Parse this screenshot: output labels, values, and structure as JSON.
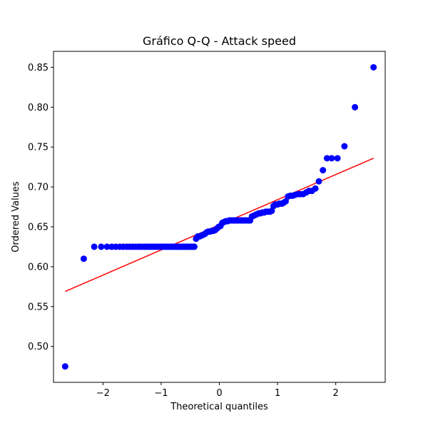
{
  "chart_data": {
    "type": "scatter",
    "title": "Gráfico Q-Q - Attack speed",
    "xlabel": "Theoretical quantiles",
    "ylabel": "Ordered Values",
    "xlim": [
      -2.85,
      2.85
    ],
    "ylim": [
      0.455,
      0.87
    ],
    "xticks": [
      -2,
      -1,
      0,
      1,
      2
    ],
    "xtick_labels": [
      "−2",
      "−1",
      "0",
      "1",
      "2"
    ],
    "yticks": [
      0.5,
      0.55,
      0.6,
      0.65,
      0.7,
      0.75,
      0.8,
      0.85
    ],
    "ytick_labels": [
      "0.50",
      "0.55",
      "0.60",
      "0.65",
      "0.70",
      "0.75",
      "0.80",
      "0.85"
    ],
    "grid": false,
    "marker_color": "#0000ff",
    "line_color": "#ff0000",
    "fit_line": {
      "x": [
        -2.65,
        2.65
      ],
      "y": [
        0.569,
        0.736
      ]
    },
    "points": [
      [
        -2.65,
        0.475
      ],
      [
        -2.33,
        0.61
      ],
      [
        -2.15,
        0.625
      ],
      [
        -2.03,
        0.625
      ],
      [
        -1.93,
        0.625
      ],
      [
        -1.85,
        0.625
      ],
      [
        -1.78,
        0.625
      ],
      [
        -1.71,
        0.625
      ],
      [
        -1.65,
        0.625
      ],
      [
        -1.59,
        0.625
      ],
      [
        -1.54,
        0.625
      ],
      [
        -1.49,
        0.625
      ],
      [
        -1.44,
        0.625
      ],
      [
        -1.39,
        0.625
      ],
      [
        -1.35,
        0.625
      ],
      [
        -1.3,
        0.625
      ],
      [
        -1.26,
        0.625
      ],
      [
        -1.22,
        0.625
      ],
      [
        -1.18,
        0.625
      ],
      [
        -1.14,
        0.625
      ],
      [
        -1.1,
        0.625
      ],
      [
        -1.06,
        0.625
      ],
      [
        -1.02,
        0.625
      ],
      [
        -0.98,
        0.625
      ],
      [
        -0.95,
        0.625
      ],
      [
        -0.91,
        0.625
      ],
      [
        -0.88,
        0.625
      ],
      [
        -0.84,
        0.625
      ],
      [
        -0.81,
        0.625
      ],
      [
        -0.77,
        0.625
      ],
      [
        -0.74,
        0.625
      ],
      [
        -0.71,
        0.625
      ],
      [
        -0.67,
        0.625
      ],
      [
        -0.64,
        0.625
      ],
      [
        -0.61,
        0.625
      ],
      [
        -0.58,
        0.625
      ],
      [
        -0.55,
        0.625
      ],
      [
        -0.52,
        0.625
      ],
      [
        -0.49,
        0.625
      ],
      [
        -0.46,
        0.625
      ],
      [
        -0.43,
        0.625
      ],
      [
        -0.4,
        0.635
      ],
      [
        -0.37,
        0.638
      ],
      [
        -0.34,
        0.638
      ],
      [
        -0.31,
        0.639
      ],
      [
        -0.28,
        0.64
      ],
      [
        -0.25,
        0.641
      ],
      [
        -0.22,
        0.643
      ],
      [
        -0.19,
        0.644
      ],
      [
        -0.16,
        0.644
      ],
      [
        -0.13,
        0.645
      ],
      [
        -0.1,
        0.645
      ],
      [
        -0.07,
        0.646
      ],
      [
        -0.04,
        0.648
      ],
      [
        -0.01,
        0.65
      ],
      [
        0.02,
        0.651
      ],
      [
        0.05,
        0.655
      ],
      [
        0.08,
        0.656
      ],
      [
        0.11,
        0.657
      ],
      [
        0.14,
        0.657
      ],
      [
        0.17,
        0.658
      ],
      [
        0.2,
        0.658
      ],
      [
        0.23,
        0.658
      ],
      [
        0.26,
        0.658
      ],
      [
        0.29,
        0.658
      ],
      [
        0.32,
        0.658
      ],
      [
        0.35,
        0.658
      ],
      [
        0.38,
        0.658
      ],
      [
        0.41,
        0.658
      ],
      [
        0.44,
        0.658
      ],
      [
        0.47,
        0.658
      ],
      [
        0.5,
        0.658
      ],
      [
        0.53,
        0.658
      ],
      [
        0.56,
        0.663
      ],
      [
        0.59,
        0.664
      ],
      [
        0.62,
        0.665
      ],
      [
        0.65,
        0.666
      ],
      [
        0.68,
        0.667
      ],
      [
        0.71,
        0.667
      ],
      [
        0.74,
        0.668
      ],
      [
        0.77,
        0.668
      ],
      [
        0.8,
        0.669
      ],
      [
        0.84,
        0.669
      ],
      [
        0.87,
        0.669
      ],
      [
        0.9,
        0.67
      ],
      [
        0.93,
        0.676
      ],
      [
        0.96,
        0.678
      ],
      [
        1.0,
        0.678
      ],
      [
        1.03,
        0.679
      ],
      [
        1.07,
        0.679
      ],
      [
        1.1,
        0.68
      ],
      [
        1.14,
        0.682
      ],
      [
        1.18,
        0.688
      ],
      [
        1.22,
        0.689
      ],
      [
        1.26,
        0.689
      ],
      [
        1.3,
        0.69
      ],
      [
        1.35,
        0.691
      ],
      [
        1.39,
        0.691
      ],
      [
        1.44,
        0.691
      ],
      [
        1.49,
        0.693
      ],
      [
        1.54,
        0.695
      ],
      [
        1.59,
        0.695
      ],
      [
        1.65,
        0.698
      ],
      [
        1.71,
        0.707
      ],
      [
        1.78,
        0.721
      ],
      [
        1.85,
        0.736
      ],
      [
        1.93,
        0.736
      ],
      [
        2.03,
        0.736
      ],
      [
        2.15,
        0.751
      ],
      [
        2.33,
        0.8
      ],
      [
        2.65,
        0.85
      ]
    ]
  }
}
